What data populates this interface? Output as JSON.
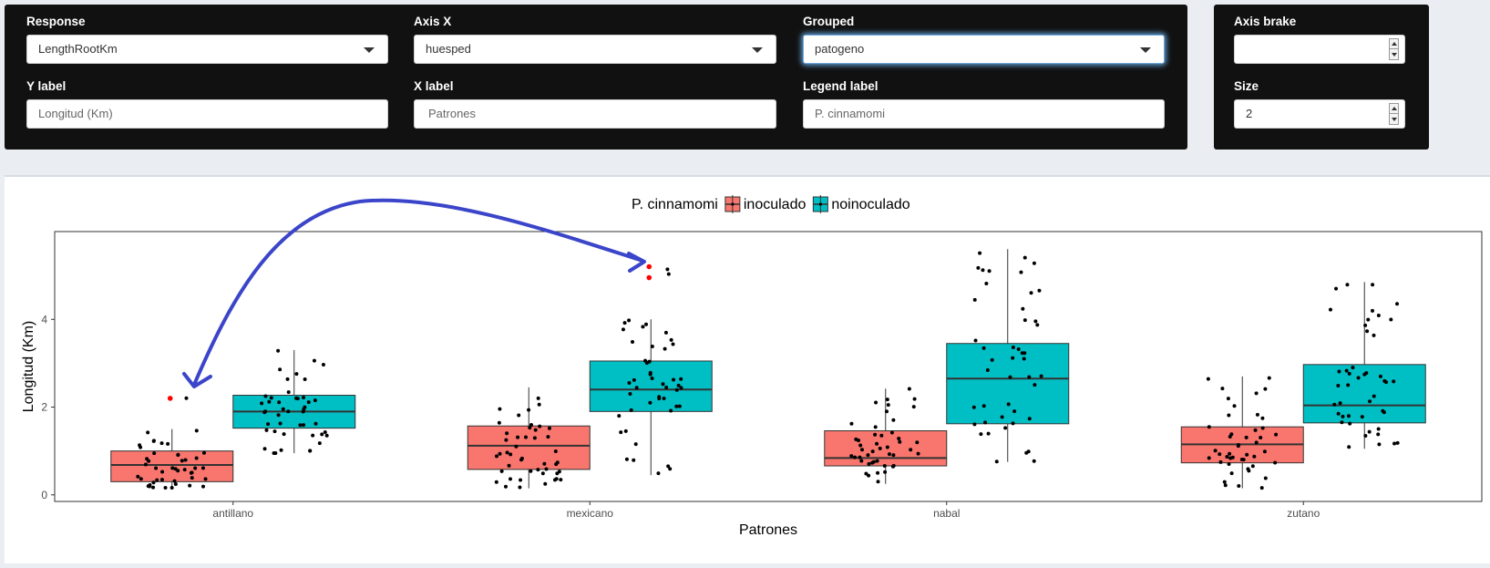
{
  "controls": {
    "response": {
      "label": "Response",
      "value": "LengthRootKm"
    },
    "axis_x": {
      "label": "Axis X",
      "value": "huesped"
    },
    "grouped": {
      "label": "Grouped",
      "value": "patogeno"
    },
    "axis_brake": {
      "label": "Axis brake",
      "value": ""
    },
    "y_label": {
      "label": "Y label",
      "placeholder": "Longitud (Km)"
    },
    "x_label": {
      "label": "X label",
      "placeholder": "Patrones"
    },
    "legend_label": {
      "label": "Legend label",
      "placeholder": "P. cinnamomi"
    },
    "size": {
      "label": "Size",
      "value": "2"
    }
  },
  "colors": {
    "inoculado": "#f8766d",
    "noinoculado": "#00bfc4",
    "outlier": "#ff0000",
    "annotation_arrow": "#3b45c9"
  },
  "chart_data": {
    "type": "boxplot",
    "xlabel": "Patrones",
    "ylabel": "Longitud (Km)",
    "legend_title": "P. cinnamomi",
    "legend_position": "top",
    "categories": [
      "antillano",
      "mexicano",
      "nabal",
      "zutano"
    ],
    "ylim": [
      -0.15,
      6.0
    ],
    "yticks": [
      0,
      2,
      4
    ],
    "grid": false,
    "series": [
      {
        "name": "inoculado",
        "boxes": [
          {
            "category": "antillano",
            "q1": 0.3,
            "median": 0.68,
            "q3": 1.0,
            "whisker_low": 0.15,
            "whisker_high": 1.5,
            "outliers": [
              2.2
            ]
          },
          {
            "category": "mexicano",
            "q1": 0.58,
            "median": 1.12,
            "q3": 1.57,
            "whisker_low": 0.15,
            "whisker_high": 2.45,
            "outliers": []
          },
          {
            "category": "nabal",
            "q1": 0.66,
            "median": 0.84,
            "q3": 1.46,
            "whisker_low": 0.25,
            "whisker_high": 2.42,
            "outliers": []
          },
          {
            "category": "zutano",
            "q1": 0.73,
            "median": 1.15,
            "q3": 1.55,
            "whisker_low": 0.15,
            "whisker_high": 2.7,
            "outliers": []
          }
        ]
      },
      {
        "name": "noinoculado",
        "boxes": [
          {
            "category": "antillano",
            "q1": 1.52,
            "median": 1.9,
            "q3": 2.27,
            "whisker_low": 0.95,
            "whisker_high": 3.3,
            "outliers": []
          },
          {
            "category": "mexicano",
            "q1": 1.9,
            "median": 2.4,
            "q3": 3.05,
            "whisker_low": 0.45,
            "whisker_high": 4.0,
            "outliers": [
              4.95,
              5.2
            ]
          },
          {
            "category": "nabal",
            "q1": 1.62,
            "median": 2.65,
            "q3": 3.45,
            "whisker_low": 0.75,
            "whisker_high": 5.6,
            "outliers": []
          },
          {
            "category": "zutano",
            "q1": 1.64,
            "median": 2.04,
            "q3": 2.97,
            "whisker_low": 1.05,
            "whisker_high": 4.85,
            "outliers": []
          }
        ]
      }
    ]
  }
}
